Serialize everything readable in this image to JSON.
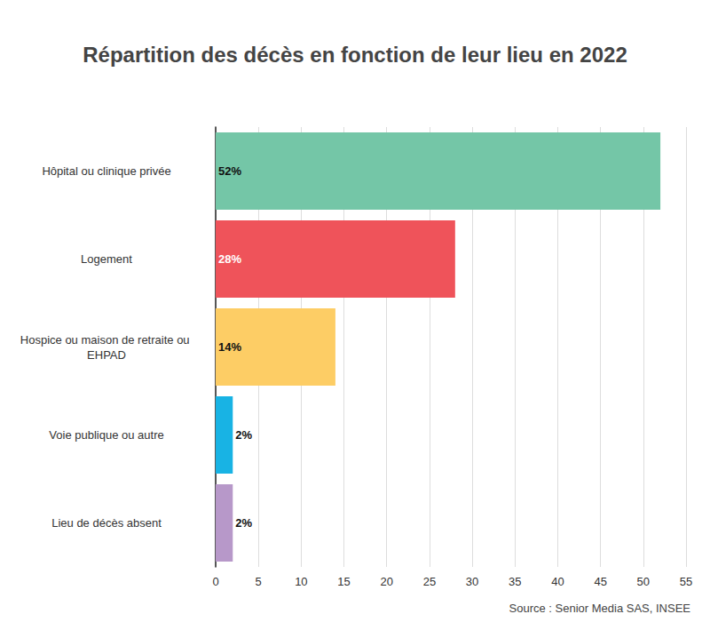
{
  "chart_data": {
    "type": "bar",
    "orientation": "horizontal",
    "title": "Répartition des décès en fonction de leur lieu en 2022",
    "annotation": "Source : Senior Media SAS, INSEE",
    "categories": [
      "Hôpital ou clinique privée",
      "Logement",
      "Hospice ou maison de retraite ou EHPAD",
      "Voie publique ou autre",
      "Lieu de décès absent"
    ],
    "values": [
      52,
      28,
      14,
      2,
      2
    ],
    "value_labels": [
      "52%",
      "28%",
      "14%",
      "2%",
      "2%"
    ],
    "colors": [
      "#74c6a7",
      "#ef535a",
      "#fdcd65",
      "#18b3e4",
      "#b798c9"
    ],
    "xlim": [
      0,
      55
    ],
    "xticks": [
      0,
      5,
      10,
      15,
      20,
      25,
      30,
      35,
      40,
      45,
      50,
      55
    ],
    "grid": true,
    "data_labels": true
  }
}
